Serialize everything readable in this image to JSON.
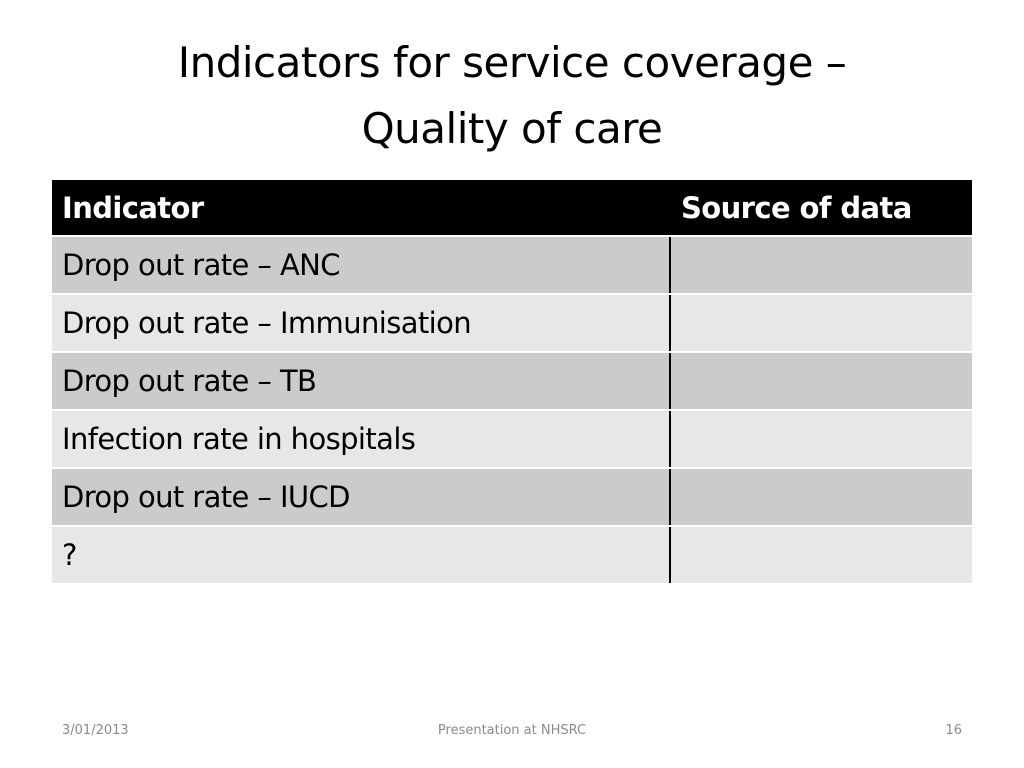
{
  "slide": {
    "title_line1": "Indicators for service coverage –",
    "title_line2": "Quality of care"
  },
  "table": {
    "headers": [
      "Indicator",
      "Source of data"
    ],
    "rows": [
      {
        "indicator": "Drop out rate – ANC",
        "source": ""
      },
      {
        "indicator": "Drop out rate – Immunisation",
        "source": ""
      },
      {
        "indicator": "Drop out rate – TB",
        "source": ""
      },
      {
        "indicator": "Infection rate in hospitals",
        "source": ""
      },
      {
        "indicator": "Drop out rate – IUCD",
        "source": ""
      },
      {
        "indicator": "?",
        "source": ""
      }
    ]
  },
  "footer": {
    "date": "3/01/2013",
    "center": "Presentation at NHSRC",
    "page_number": "16"
  },
  "colors": {
    "header_bg": "#000000",
    "row_dark": "#cbcbcb",
    "row_light": "#e7e7e7"
  }
}
